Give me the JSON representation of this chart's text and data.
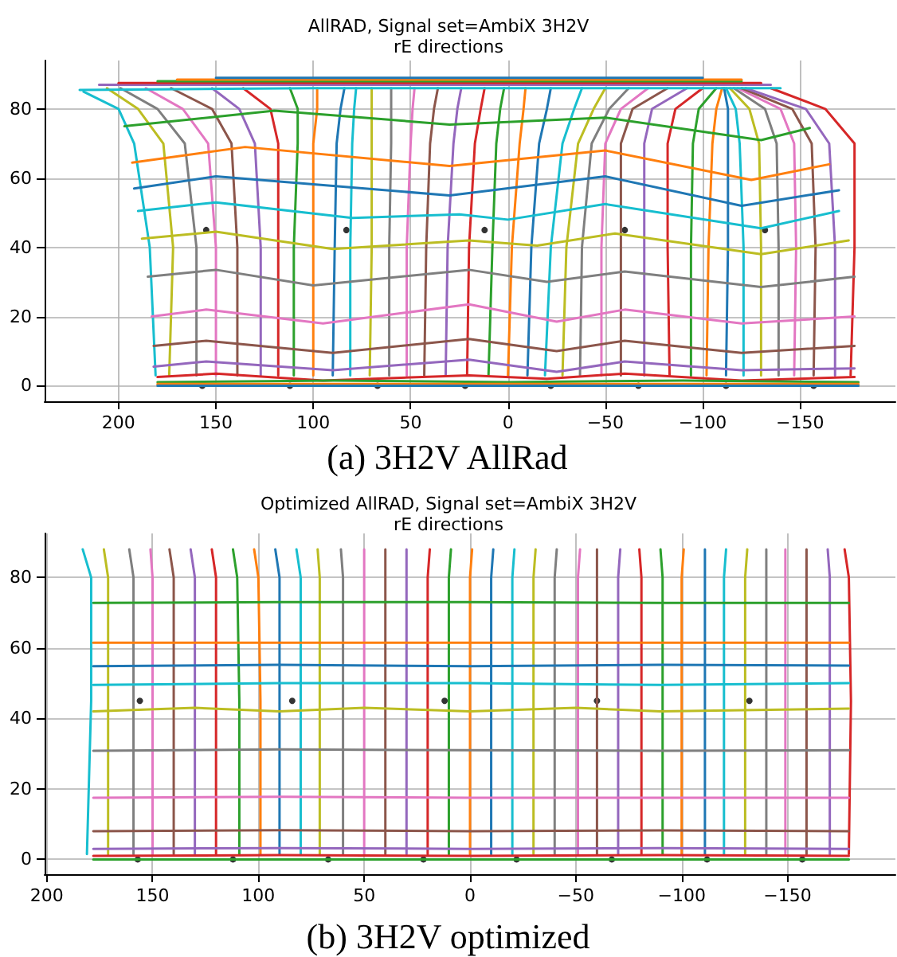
{
  "chart_data": [
    {
      "type": "line",
      "title": "AllRAD, Signal set=AmbiX 3H2V",
      "subtitle": "rE directions",
      "annotations": [
        "(a) 3H2V AllRad"
      ],
      "xlim": [
        238,
        -199
      ],
      "ylim": [
        -4.5,
        94
      ],
      "xticks": [
        200,
        150,
        100,
        50,
        0,
        -50,
        -100,
        -150
      ],
      "yticks": [
        0,
        20,
        40,
        60,
        80
      ],
      "grid": true,
      "marker": "none",
      "line_style": "solid",
      "series": [
        {
          "color": "#17becf",
          "x": [
            181,
            184,
            192,
            200,
            218
          ],
          "values": [
            3,
            40,
            70,
            80,
            85
          ]
        },
        {
          "color": "#bcbd22",
          "x": [
            174,
            172,
            177,
            190,
            206
          ],
          "values": [
            3,
            40,
            70,
            80,
            86
          ]
        },
        {
          "color": "#7f7f7f",
          "x": [
            160,
            160,
            166,
            180,
            199
          ],
          "values": [
            3,
            40,
            70,
            80,
            86
          ]
        },
        {
          "color": "#e377c2",
          "x": [
            150,
            150,
            154,
            167,
            186
          ],
          "values": [
            3,
            40,
            70,
            80,
            86
          ]
        },
        {
          "color": "#8c564b",
          "x": [
            139,
            139,
            142,
            152,
            173
          ],
          "values": [
            3,
            40,
            70,
            80,
            86
          ]
        },
        {
          "color": "#9467bd",
          "x": [
            127,
            127,
            130,
            138,
            152
          ],
          "values": [
            3,
            40,
            70,
            80,
            86
          ]
        },
        {
          "color": "#d62728",
          "x": [
            118,
            118,
            118,
            122,
            136
          ],
          "values": [
            3,
            40,
            70,
            80,
            86
          ]
        },
        {
          "color": "#2ca02c",
          "x": [
            110,
            110,
            108,
            108,
            112
          ],
          "values": [
            3,
            40,
            70,
            80,
            86
          ]
        },
        {
          "color": "#ff7f0e",
          "x": [
            100,
            100,
            100,
            98,
            98
          ],
          "values": [
            3,
            40,
            70,
            80,
            86
          ]
        },
        {
          "color": "#1f77b4",
          "x": [
            90,
            89,
            88,
            86,
            84
          ],
          "values": [
            3,
            40,
            70,
            80,
            86
          ]
        },
        {
          "color": "#17becf",
          "x": [
            81,
            81,
            80,
            79,
            78
          ],
          "values": [
            3,
            40,
            70,
            80,
            86
          ]
        },
        {
          "color": "#bcbd22",
          "x": [
            71,
            70,
            70,
            70,
            70
          ],
          "values": [
            3,
            40,
            70,
            80,
            86
          ]
        },
        {
          "color": "#7f7f7f",
          "x": [
            61,
            61,
            60,
            60,
            60
          ],
          "values": [
            3,
            40,
            70,
            80,
            86
          ]
        },
        {
          "color": "#e377c2",
          "x": [
            52,
            52,
            50,
            49,
            48
          ],
          "values": [
            3,
            40,
            70,
            80,
            86
          ]
        },
        {
          "color": "#8c564b",
          "x": [
            43,
            42,
            40,
            38,
            36
          ],
          "values": [
            3,
            40,
            70,
            80,
            86
          ]
        },
        {
          "color": "#9467bd",
          "x": [
            32,
            31,
            28,
            26,
            24
          ],
          "values": [
            3,
            40,
            70,
            80,
            86
          ]
        },
        {
          "color": "#d62728",
          "x": [
            21,
            20,
            17,
            14,
            12
          ],
          "values": [
            3,
            40,
            70,
            80,
            86
          ]
        },
        {
          "color": "#2ca02c",
          "x": [
            10,
            8,
            6,
            4,
            2
          ],
          "values": [
            3,
            40,
            70,
            80,
            86
          ]
        },
        {
          "color": "#ff7f0e",
          "x": [
            0,
            -2,
            -6,
            -8,
            -9
          ],
          "values": [
            3,
            40,
            70,
            80,
            86
          ]
        },
        {
          "color": "#1f77b4",
          "x": [
            -10,
            -12,
            -16,
            -20,
            -22
          ],
          "values": [
            3,
            40,
            70,
            80,
            86
          ]
        },
        {
          "color": "#17becf",
          "x": [
            -19,
            -22,
            -28,
            -34,
            -38
          ],
          "values": [
            3,
            40,
            70,
            80,
            86
          ]
        },
        {
          "color": "#bcbd22",
          "x": [
            -28,
            -30,
            -36,
            -44,
            -50
          ],
          "values": [
            3,
            40,
            70,
            80,
            86
          ]
        },
        {
          "color": "#7f7f7f",
          "x": [
            -37,
            -38,
            -43,
            -52,
            -62
          ],
          "values": [
            3,
            40,
            70,
            80,
            86
          ]
        },
        {
          "color": "#e377c2",
          "x": [
            -48,
            -48,
            -50,
            -58,
            -72
          ],
          "values": [
            3,
            40,
            70,
            80,
            86
          ]
        },
        {
          "color": "#8c564b",
          "x": [
            -58,
            -58,
            -58,
            -64,
            -82
          ],
          "values": [
            3,
            40,
            70,
            80,
            86
          ]
        },
        {
          "color": "#9467bd",
          "x": [
            -70,
            -70,
            -70,
            -74,
            -92
          ],
          "values": [
            3,
            40,
            70,
            80,
            86
          ]
        },
        {
          "color": "#d62728",
          "x": [
            -83,
            -82,
            -82,
            -86,
            -100
          ],
          "values": [
            3,
            40,
            70,
            80,
            86
          ]
        },
        {
          "color": "#2ca02c",
          "x": [
            -94,
            -94,
            -95,
            -98,
            -107
          ],
          "values": [
            3,
            40,
            70,
            80,
            86
          ]
        },
        {
          "color": "#ff7f0e",
          "x": [
            -102,
            -103,
            -105,
            -107,
            -110
          ],
          "values": [
            3,
            40,
            70,
            80,
            86
          ]
        },
        {
          "color": "#1f77b4",
          "x": [
            -112,
            -113,
            -113,
            -113,
            -111
          ],
          "values": [
            3,
            40,
            70,
            80,
            86
          ]
        },
        {
          "color": "#17becf",
          "x": [
            -121,
            -121,
            -119,
            -117,
            -112
          ],
          "values": [
            3,
            40,
            70,
            80,
            86
          ]
        },
        {
          "color": "#bcbd22",
          "x": [
            -130,
            -130,
            -129,
            -124,
            -114
          ],
          "values": [
            3,
            40,
            70,
            80,
            86
          ]
        },
        {
          "color": "#7f7f7f",
          "x": [
            -139,
            -139,
            -138,
            -132,
            -116
          ],
          "values": [
            3,
            40,
            70,
            80,
            86
          ]
        },
        {
          "color": "#e377c2",
          "x": [
            -147,
            -148,
            -147,
            -140,
            -118
          ],
          "values": [
            3,
            40,
            70,
            80,
            86
          ]
        },
        {
          "color": "#8c564b",
          "x": [
            -157,
            -158,
            -156,
            -146,
            -120
          ],
          "values": [
            3,
            40,
            70,
            80,
            86
          ]
        },
        {
          "color": "#9467bd",
          "x": [
            -168,
            -168,
            -165,
            -153,
            -122
          ],
          "values": [
            3,
            40,
            70,
            80,
            86
          ]
        },
        {
          "color": "#d62728",
          "x": [
            -176,
            -178,
            -178,
            -163,
            -135
          ],
          "values": [
            3,
            40,
            70,
            80,
            86
          ]
        },
        {
          "color": "#17becf",
          "x": [
            220,
            100,
            0,
            -100,
            -140
          ],
          "values": [
            85.5,
            86,
            86,
            86,
            86
          ]
        },
        {
          "color": "#9467bd",
          "x": [
            210,
            100,
            0,
            -100,
            -135
          ],
          "values": [
            87,
            87,
            87,
            87,
            87
          ]
        },
        {
          "color": "#d62728",
          "x": [
            200,
            100,
            0,
            -100,
            -130
          ],
          "values": [
            87.5,
            87.5,
            87.5,
            87.5,
            87.5
          ]
        },
        {
          "color": "#2ca02c",
          "x": [
            180,
            100,
            0,
            -100,
            -120
          ],
          "values": [
            88,
            88,
            88,
            88,
            88
          ]
        },
        {
          "color": "#ff7f0e",
          "x": [
            170,
            100,
            0,
            -100,
            -120
          ],
          "values": [
            88.5,
            88.5,
            88.5,
            88.5,
            88.5
          ]
        },
        {
          "color": "#1f77b4",
          "x": [
            150,
            100,
            0,
            -100
          ],
          "values": [
            89,
            89,
            89,
            89
          ]
        },
        {
          "color": "#2ca02c",
          "x": [
            197,
            120,
            30,
            -50,
            -130,
            -155
          ],
          "values": [
            75,
            79.5,
            75.5,
            77.5,
            71,
            74.5
          ]
        },
        {
          "color": "#ff7f0e",
          "x": [
            193,
            135,
            30,
            -50,
            -125,
            -165
          ],
          "values": [
            64.5,
            69,
            63.5,
            68,
            59.5,
            64
          ]
        },
        {
          "color": "#1f77b4",
          "x": [
            192,
            150,
            30,
            -50,
            -120,
            -170
          ],
          "values": [
            57,
            60.5,
            55,
            60.5,
            52,
            56.5
          ]
        },
        {
          "color": "#17becf",
          "x": [
            190,
            150,
            80,
            25,
            0,
            -50,
            -130,
            -170
          ],
          "values": [
            50.5,
            53,
            48.5,
            49.5,
            48,
            52.5,
            45.5,
            50.5
          ]
        },
        {
          "color": "#bcbd22",
          "x": [
            188,
            150,
            90,
            20,
            -15,
            -55,
            -130,
            -175
          ],
          "values": [
            42.5,
            44.5,
            39.5,
            42,
            40.5,
            44,
            38,
            42
          ]
        },
        {
          "color": "#7f7f7f",
          "x": [
            185,
            150,
            100,
            20,
            -20,
            -60,
            -130,
            -178
          ],
          "values": [
            31.5,
            33.5,
            29,
            33.5,
            30,
            33,
            28.5,
            31.5
          ]
        },
        {
          "color": "#e377c2",
          "x": [
            183,
            155,
            95,
            20,
            -25,
            -60,
            -120,
            -178
          ],
          "values": [
            20,
            22,
            18,
            23.5,
            18.5,
            22,
            18,
            20
          ]
        },
        {
          "color": "#8c564b",
          "x": [
            182,
            155,
            90,
            20,
            -25,
            -60,
            -120,
            -178
          ],
          "values": [
            11.5,
            13,
            9.5,
            13.5,
            10,
            13,
            9.5,
            11.5
          ]
        },
        {
          "color": "#9467bd",
          "x": [
            182,
            155,
            90,
            20,
            -25,
            -60,
            -120,
            -178
          ],
          "values": [
            5.5,
            7,
            4.5,
            7.5,
            4,
            7,
            4.5,
            5
          ]
        },
        {
          "color": "#d62728",
          "x": [
            180,
            150,
            95,
            20,
            -20,
            -60,
            -120,
            -178
          ],
          "values": [
            2.5,
            3.5,
            1.5,
            3,
            2,
            3.5,
            1.5,
            2.5
          ]
        },
        {
          "color": "#2ca02c",
          "x": [
            180,
            90,
            0,
            -90,
            -180
          ],
          "values": [
            1,
            1.5,
            1,
            1.5,
            1
          ]
        },
        {
          "color": "#ff7f0e",
          "x": [
            180,
            90,
            0,
            -90,
            -180
          ],
          "values": [
            0.5,
            0.5,
            0.5,
            0.5,
            0.5
          ]
        },
        {
          "color": "#1f77b4",
          "x": [
            180,
            90,
            0,
            -90,
            -180
          ],
          "values": [
            0,
            0,
            0,
            0,
            0
          ]
        },
        {
          "type": "scatter",
          "marker": "circle",
          "color": "#000000",
          "x": [
            155,
            83,
            12,
            -60,
            -132,
            157,
            112,
            67,
            22,
            -22,
            -67,
            -112,
            -157
          ],
          "values": [
            45,
            45,
            45,
            45,
            45,
            0,
            0,
            0,
            0,
            0,
            0,
            0,
            0
          ]
        }
      ]
    },
    {
      "type": "line",
      "title": "Optimized AllRAD, Signal set=AmbiX 3H2V",
      "subtitle": "rE directions",
      "annotations": [
        "(b) 3H2V optimized"
      ],
      "xlim": [
        201,
        -201
      ],
      "ylim": [
        -4.2,
        92.5
      ],
      "xticks": [
        200,
        150,
        100,
        50,
        0,
        -50,
        -100,
        -150
      ],
      "yticks": [
        0,
        20,
        40,
        60,
        80
      ],
      "grid": true,
      "marker": "none",
      "line_style": "solid",
      "series": [
        {
          "color": "#17becf",
          "x": [
            181,
            179,
            179,
            183
          ],
          "values": [
            1.5,
            45,
            80,
            88
          ]
        },
        {
          "color": "#bcbd22",
          "x": [
            171,
            171,
            171,
            173
          ],
          "values": [
            1.5,
            45,
            80,
            88
          ]
        },
        {
          "color": "#7f7f7f",
          "x": [
            159,
            159,
            159,
            161
          ],
          "values": [
            1.5,
            45,
            80,
            88
          ]
        },
        {
          "color": "#e377c2",
          "x": [
            150,
            150,
            150,
            151
          ],
          "values": [
            1.5,
            45,
            80,
            88
          ]
        },
        {
          "color": "#8c564b",
          "x": [
            140,
            140,
            140,
            142
          ],
          "values": [
            1.5,
            45,
            80,
            88
          ]
        },
        {
          "color": "#9467bd",
          "x": [
            130,
            130,
            130,
            132
          ],
          "values": [
            1.5,
            45,
            80,
            88
          ]
        },
        {
          "color": "#d62728",
          "x": [
            120,
            120,
            120,
            122
          ],
          "values": [
            1.5,
            45,
            80,
            88
          ]
        },
        {
          "color": "#2ca02c",
          "x": [
            109,
            109,
            110,
            112
          ],
          "values": [
            1.5,
            45,
            80,
            88
          ]
        },
        {
          "color": "#ff7f0e",
          "x": [
            99,
            99,
            100,
            102
          ],
          "values": [
            1.5,
            45,
            80,
            88
          ]
        },
        {
          "color": "#1f77b4",
          "x": [
            90,
            90,
            90,
            92
          ],
          "values": [
            1.5,
            45,
            80,
            88
          ]
        },
        {
          "color": "#17becf",
          "x": [
            80,
            80,
            80,
            82
          ],
          "values": [
            1.5,
            45,
            80,
            88
          ]
        },
        {
          "color": "#bcbd22",
          "x": [
            71,
            71,
            71,
            72
          ],
          "values": [
            1.5,
            45,
            80,
            88
          ]
        },
        {
          "color": "#7f7f7f",
          "x": [
            60,
            60,
            60,
            61
          ],
          "values": [
            1.5,
            45,
            80,
            88
          ]
        },
        {
          "color": "#e377c2",
          "x": [
            50,
            50,
            50,
            50
          ],
          "values": [
            1.5,
            45,
            80,
            88
          ]
        },
        {
          "color": "#8c564b",
          "x": [
            40,
            40,
            40,
            40
          ],
          "values": [
            1.5,
            45,
            80,
            88
          ]
        },
        {
          "color": "#9467bd",
          "x": [
            30,
            30,
            30,
            30
          ],
          "values": [
            1.5,
            45,
            80,
            88
          ]
        },
        {
          "color": "#d62728",
          "x": [
            20,
            20,
            20,
            19
          ],
          "values": [
            1.5,
            45,
            80,
            88
          ]
        },
        {
          "color": "#2ca02c",
          "x": [
            10,
            10,
            10,
            9
          ],
          "values": [
            1.5,
            45,
            80,
            88
          ]
        },
        {
          "color": "#ff7f0e",
          "x": [
            0,
            0,
            0,
            -1
          ],
          "values": [
            1.5,
            45,
            80,
            88
          ]
        },
        {
          "color": "#1f77b4",
          "x": [
            -10,
            -10,
            -10,
            -11
          ],
          "values": [
            1.5,
            45,
            80,
            88
          ]
        },
        {
          "color": "#17becf",
          "x": [
            -20,
            -20,
            -20,
            -21
          ],
          "values": [
            1.5,
            45,
            80,
            88
          ]
        },
        {
          "color": "#bcbd22",
          "x": [
            -30,
            -30,
            -30,
            -31
          ],
          "values": [
            1.5,
            45,
            80,
            88
          ]
        },
        {
          "color": "#7f7f7f",
          "x": [
            -40,
            -40,
            -40,
            -41
          ],
          "values": [
            1.5,
            45,
            80,
            88
          ]
        },
        {
          "color": "#e377c2",
          "x": [
            -51,
            -51,
            -51,
            -52
          ],
          "values": [
            1.5,
            45,
            80,
            88
          ]
        },
        {
          "color": "#8c564b",
          "x": [
            -60,
            -60,
            -60,
            -60
          ],
          "values": [
            1.5,
            45,
            80,
            88
          ]
        },
        {
          "color": "#9467bd",
          "x": [
            -70,
            -70,
            -70,
            -71
          ],
          "values": [
            1.5,
            45,
            80,
            88
          ]
        },
        {
          "color": "#d62728",
          "x": [
            -81,
            -81,
            -81,
            -80
          ],
          "values": [
            1.5,
            45,
            80,
            88
          ]
        },
        {
          "color": "#2ca02c",
          "x": [
            -91,
            -91,
            -91,
            -90
          ],
          "values": [
            1.5,
            45,
            80,
            88
          ]
        },
        {
          "color": "#ff7f0e",
          "x": [
            -100,
            -100,
            -100,
            -101
          ],
          "values": [
            1.5,
            45,
            80,
            88
          ]
        },
        {
          "color": "#1f77b4",
          "x": [
            -111,
            -111,
            -111,
            -111
          ],
          "values": [
            1.5,
            45,
            80,
            88
          ]
        },
        {
          "color": "#17becf",
          "x": [
            -120,
            -120,
            -120,
            -121
          ],
          "values": [
            1.5,
            45,
            80,
            88
          ]
        },
        {
          "color": "#bcbd22",
          "x": [
            -130,
            -130,
            -130,
            -131
          ],
          "values": [
            1.5,
            45,
            80,
            88
          ]
        },
        {
          "color": "#7f7f7f",
          "x": [
            -140,
            -140,
            -140,
            -140
          ],
          "values": [
            1.5,
            45,
            80,
            88
          ]
        },
        {
          "color": "#e377c2",
          "x": [
            -149,
            -149,
            -149,
            -149
          ],
          "values": [
            1.5,
            45,
            80,
            88
          ]
        },
        {
          "color": "#8c564b",
          "x": [
            -159,
            -159,
            -159,
            -159
          ],
          "values": [
            1.5,
            45,
            80,
            88
          ]
        },
        {
          "color": "#9467bd",
          "x": [
            -170,
            -170,
            -170,
            -169
          ],
          "values": [
            1.5,
            45,
            80,
            88
          ]
        },
        {
          "color": "#d62728",
          "x": [
            -179,
            -180,
            -179,
            -177
          ],
          "values": [
            1.5,
            45,
            80,
            88
          ]
        },
        {
          "color": "#2ca02c",
          "x": [
            178,
            90,
            0,
            -90,
            -179
          ],
          "values": [
            72.8,
            73,
            73,
            72.8,
            72.8
          ]
        },
        {
          "color": "#ff7f0e",
          "x": [
            178,
            90,
            0,
            -90,
            -179
          ],
          "values": [
            61.5,
            61.5,
            61.5,
            61.5,
            61.5
          ]
        },
        {
          "color": "#1f77b4",
          "x": [
            178,
            90,
            0,
            -90,
            -179
          ],
          "values": [
            54.8,
            55.2,
            54.8,
            55.2,
            55
          ]
        },
        {
          "color": "#17becf",
          "x": [
            178,
            90,
            0,
            -90,
            -179
          ],
          "values": [
            49.5,
            50,
            50,
            49.5,
            50
          ]
        },
        {
          "color": "#bcbd22",
          "x": [
            178,
            130,
            90,
            50,
            0,
            -50,
            -90,
            -179
          ],
          "values": [
            42,
            43,
            42,
            43,
            42,
            43,
            42,
            42.8
          ]
        },
        {
          "color": "#7f7f7f",
          "x": [
            178,
            90,
            0,
            -90,
            -179
          ],
          "values": [
            30.8,
            31.2,
            31,
            30.8,
            31
          ]
        },
        {
          "color": "#e377c2",
          "x": [
            178,
            90,
            0,
            -90,
            -179
          ],
          "values": [
            17.5,
            17.8,
            17.5,
            17.5,
            17.5
          ]
        },
        {
          "color": "#8c564b",
          "x": [
            178,
            90,
            0,
            -90,
            -179
          ],
          "values": [
            8,
            8.3,
            8,
            8.2,
            8
          ]
        },
        {
          "color": "#9467bd",
          "x": [
            178,
            90,
            0,
            -90,
            -179
          ],
          "values": [
            3,
            3.2,
            3,
            3.2,
            3
          ]
        },
        {
          "color": "#d62728",
          "x": [
            178,
            90,
            0,
            -90,
            -179
          ],
          "values": [
            1,
            1.2,
            1,
            1.2,
            1
          ]
        },
        {
          "color": "#2ca02c",
          "x": [
            178,
            90,
            0,
            -90,
            -179
          ],
          "values": [
            0,
            0,
            0,
            0,
            0
          ]
        },
        {
          "type": "scatter",
          "marker": "circle",
          "color": "#000000",
          "x": [
            156,
            84,
            12,
            -60,
            -132,
            157,
            112,
            67,
            22,
            -22,
            -67,
            -112,
            -157
          ],
          "values": [
            45,
            45,
            45,
            45,
            45,
            0,
            0,
            0,
            0,
            0,
            0,
            0,
            0
          ]
        }
      ]
    }
  ]
}
